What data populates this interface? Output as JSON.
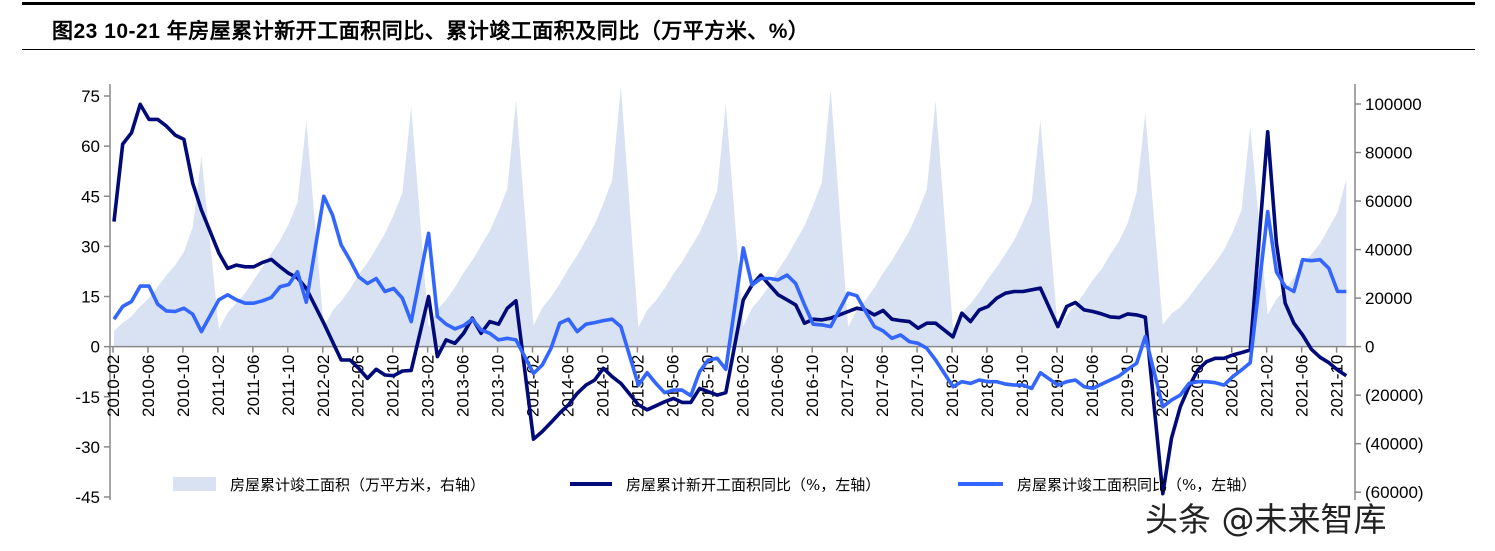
{
  "title": "图23  10-21 年房屋累计新开工面积同比、累计竣工面积及同比（万平方米、%）",
  "watermark": "头条 @未来智库",
  "chart_data": {
    "type": "line+area",
    "x_start": "2010-02",
    "x_tick_labels": [
      "2010-02",
      "2010-06",
      "2010-10",
      "2011-02",
      "2011-06",
      "2011-10",
      "2012-02",
      "2012-06",
      "2012-10",
      "2013-02",
      "2013-06",
      "2013-10",
      "2014-02",
      "2014-06",
      "2014-10",
      "2015-02",
      "2015-06",
      "2015-10",
      "2016-02",
      "2016-06",
      "2016-10",
      "2017-02",
      "2017-06",
      "2017-10",
      "2018-02",
      "2018-06",
      "2018-10",
      "2019-02",
      "2019-06",
      "2019-10",
      "2020-02",
      "2020-06",
      "2020-10",
      "2021-02",
      "2021-06",
      "2021-10"
    ],
    "left_axis": {
      "ylim": [
        -45,
        75
      ],
      "ticks": [
        "75",
        "60",
        "45",
        "30",
        "15",
        "0",
        "-15",
        "-30",
        "-45"
      ],
      "tick_values": [
        75,
        60,
        45,
        30,
        15,
        0,
        -15,
        -30,
        -45
      ]
    },
    "right_axis": {
      "ylim": [
        -60000,
        100000
      ],
      "ticks": [
        "100000",
        "80000",
        "60000",
        "40000",
        "20000",
        "0",
        "(20000)",
        "(40000)",
        "(60000)"
      ],
      "tick_values": [
        100000,
        80000,
        60000,
        40000,
        20000,
        0,
        -20000,
        -40000,
        -60000
      ]
    },
    "grid": false,
    "legend_position": "bottom",
    "series": [
      {
        "name": "房屋累计竣工面积（万平方米，右轴）",
        "type": "area",
        "axis": "right",
        "color": "#d9e2f3",
        "values": [
          6400,
          9800,
          12500,
          16600,
          20000,
          24700,
          29500,
          33600,
          39000,
          49200,
          78500,
          null,
          7100,
          13900,
          18000,
          22000,
          27500,
          32900,
          38400,
          43800,
          50600,
          59400,
          92800,
          null,
          7900,
          14800,
          18800,
          23700,
          29700,
          34600,
          40500,
          46500,
          54400,
          63300,
          98900,
          null,
          8100,
          15200,
          19300,
          24400,
          30500,
          35600,
          41700,
          47800,
          55900,
          65000,
          101600,
          null,
          8600,
          16100,
          20400,
          25800,
          32200,
          37600,
          44000,
          50400,
          59000,
          68700,
          107300,
          null,
          8000,
          15000,
          19000,
          24000,
          30000,
          35000,
          41000,
          47000,
          55000,
          64000,
          100000,
          null,
          8500,
          15900,
          20100,
          25400,
          31800,
          37100,
          43500,
          49800,
          58300,
          67800,
          106000,
          null,
          8100,
          15200,
          19200,
          24300,
          30400,
          35500,
          41500,
          47600,
          55700,
          64800,
          101300,
          null,
          7500,
          14000,
          17700,
          22400,
          28000,
          32700,
          38300,
          43900,
          51400,
          59800,
          93400,
          null,
          6600,
          13000,
          17000,
          22000,
          27500,
          32000,
          38000,
          43500,
          51000,
          63700,
          96300,
          null,
          9100,
          13600,
          16300,
          20400,
          25400,
          29900,
          34500,
          39900,
          47200,
          56200,
          90700,
          null,
          13200,
          19500,
          23500,
          28500,
          33500,
          38000,
          42500,
          49000,
          55500,
          69000
        ]
      },
      {
        "name": "房屋累计新开工面积同比（%，左轴）",
        "type": "line",
        "axis": "left",
        "color": "#000a78",
        "values": [
          37.4,
          60.6,
          64,
          72.5,
          68,
          68,
          66,
          63.3,
          62,
          48.9,
          40.9,
          null,
          28,
          23.4,
          24.4,
          23.9,
          23.9,
          25.2,
          26.1,
          23.9,
          21.9,
          20.6,
          17.4,
          null,
          7,
          1.5,
          -4,
          -4,
          -6.5,
          -9.5,
          -6.8,
          -8.5,
          -8.7,
          -7.3,
          -7.1,
          null,
          15,
          -3,
          2,
          1,
          4,
          8.5,
          4,
          7.5,
          6.7,
          11.5,
          13.7,
          null,
          -27.7,
          -25.4,
          -22.7,
          -19.9,
          -17.4,
          -14,
          -11.5,
          -10,
          -6.5,
          -9,
          -11,
          null,
          -17.4,
          -18.9,
          -17.7,
          -16.5,
          -15.5,
          -16.7,
          -16.7,
          -12.5,
          -13.5,
          -14.5,
          -13.8,
          null,
          14,
          18.4,
          21.4,
          18.4,
          15.5,
          14,
          12.5,
          7,
          8.2,
          8,
          8.5,
          null,
          10.5,
          11.5,
          11,
          9.5,
          10.8,
          8.2,
          7.8,
          7.5,
          5.5,
          7,
          7,
          null,
          2.9,
          10,
          7.5,
          11,
          12,
          14.5,
          16,
          16.5,
          16.5,
          17,
          17.5,
          null,
          6,
          12,
          13.2,
          11,
          10.5,
          9.8,
          8.9,
          8.7,
          9.8,
          9.5,
          8.8,
          null,
          -44,
          -27.4,
          -18,
          -12,
          -7,
          -4.5,
          -3.5,
          -3.5,
          -2.5,
          -1.8,
          -1,
          null,
          64.3,
          31,
          13,
          7,
          3.5,
          -0.8,
          -3.2,
          -4.8,
          -7,
          -8.7
        ]
      },
      {
        "name": "房屋累计竣工面积同比（%，左轴）",
        "type": "line",
        "axis": "left",
        "color": "#3366ff",
        "values": [
          8.2,
          12,
          13.5,
          18.1,
          18.1,
          12.7,
          10.7,
          10.5,
          11.5,
          9.7,
          4.5,
          null,
          14,
          15.5,
          14,
          13,
          13,
          13.7,
          14.7,
          17.9,
          18.6,
          22.4,
          13.3,
          null,
          45,
          39.4,
          30.4,
          25.9,
          20.9,
          18.9,
          20.4,
          16.5,
          17.4,
          14.5,
          7.5,
          null,
          33.9,
          9,
          6.7,
          5.3,
          6.3,
          8.2,
          5,
          4,
          2,
          2.5,
          2,
          null,
          -8,
          -5.5,
          -0.5,
          7,
          8.2,
          4.5,
          6.7,
          7.2,
          7.8,
          8.2,
          6,
          null,
          -11.5,
          -7.8,
          -11,
          -13.8,
          -13,
          -13,
          -14.7,
          -7.5,
          -4,
          -3.5,
          -6.8,
          null,
          29.5,
          18.4,
          20.4,
          20.4,
          20,
          21.4,
          18.9,
          12.5,
          6.7,
          6.5,
          6,
          null,
          16,
          15.2,
          10.5,
          6,
          4.7,
          2.5,
          3.5,
          1.5,
          1,
          -0.5,
          -4,
          null,
          -12,
          -10.5,
          -11,
          -10,
          -10.5,
          -10.5,
          -11.2,
          -11.5,
          -11.5,
          -12.5,
          -7.8,
          null,
          -11.5,
          -10.5,
          -10,
          -12,
          -12.5,
          -11.2,
          -10,
          -8.8,
          -6.8,
          -5,
          3,
          null,
          -18,
          -16,
          -14.5,
          -11,
          -10.5,
          -10.5,
          -10.8,
          -11.5,
          -9,
          -7,
          -4.8,
          null,
          40.4,
          22.4,
          18,
          16.5,
          26,
          25.7,
          26,
          23.4,
          16.5,
          16.5
        ]
      }
    ]
  }
}
